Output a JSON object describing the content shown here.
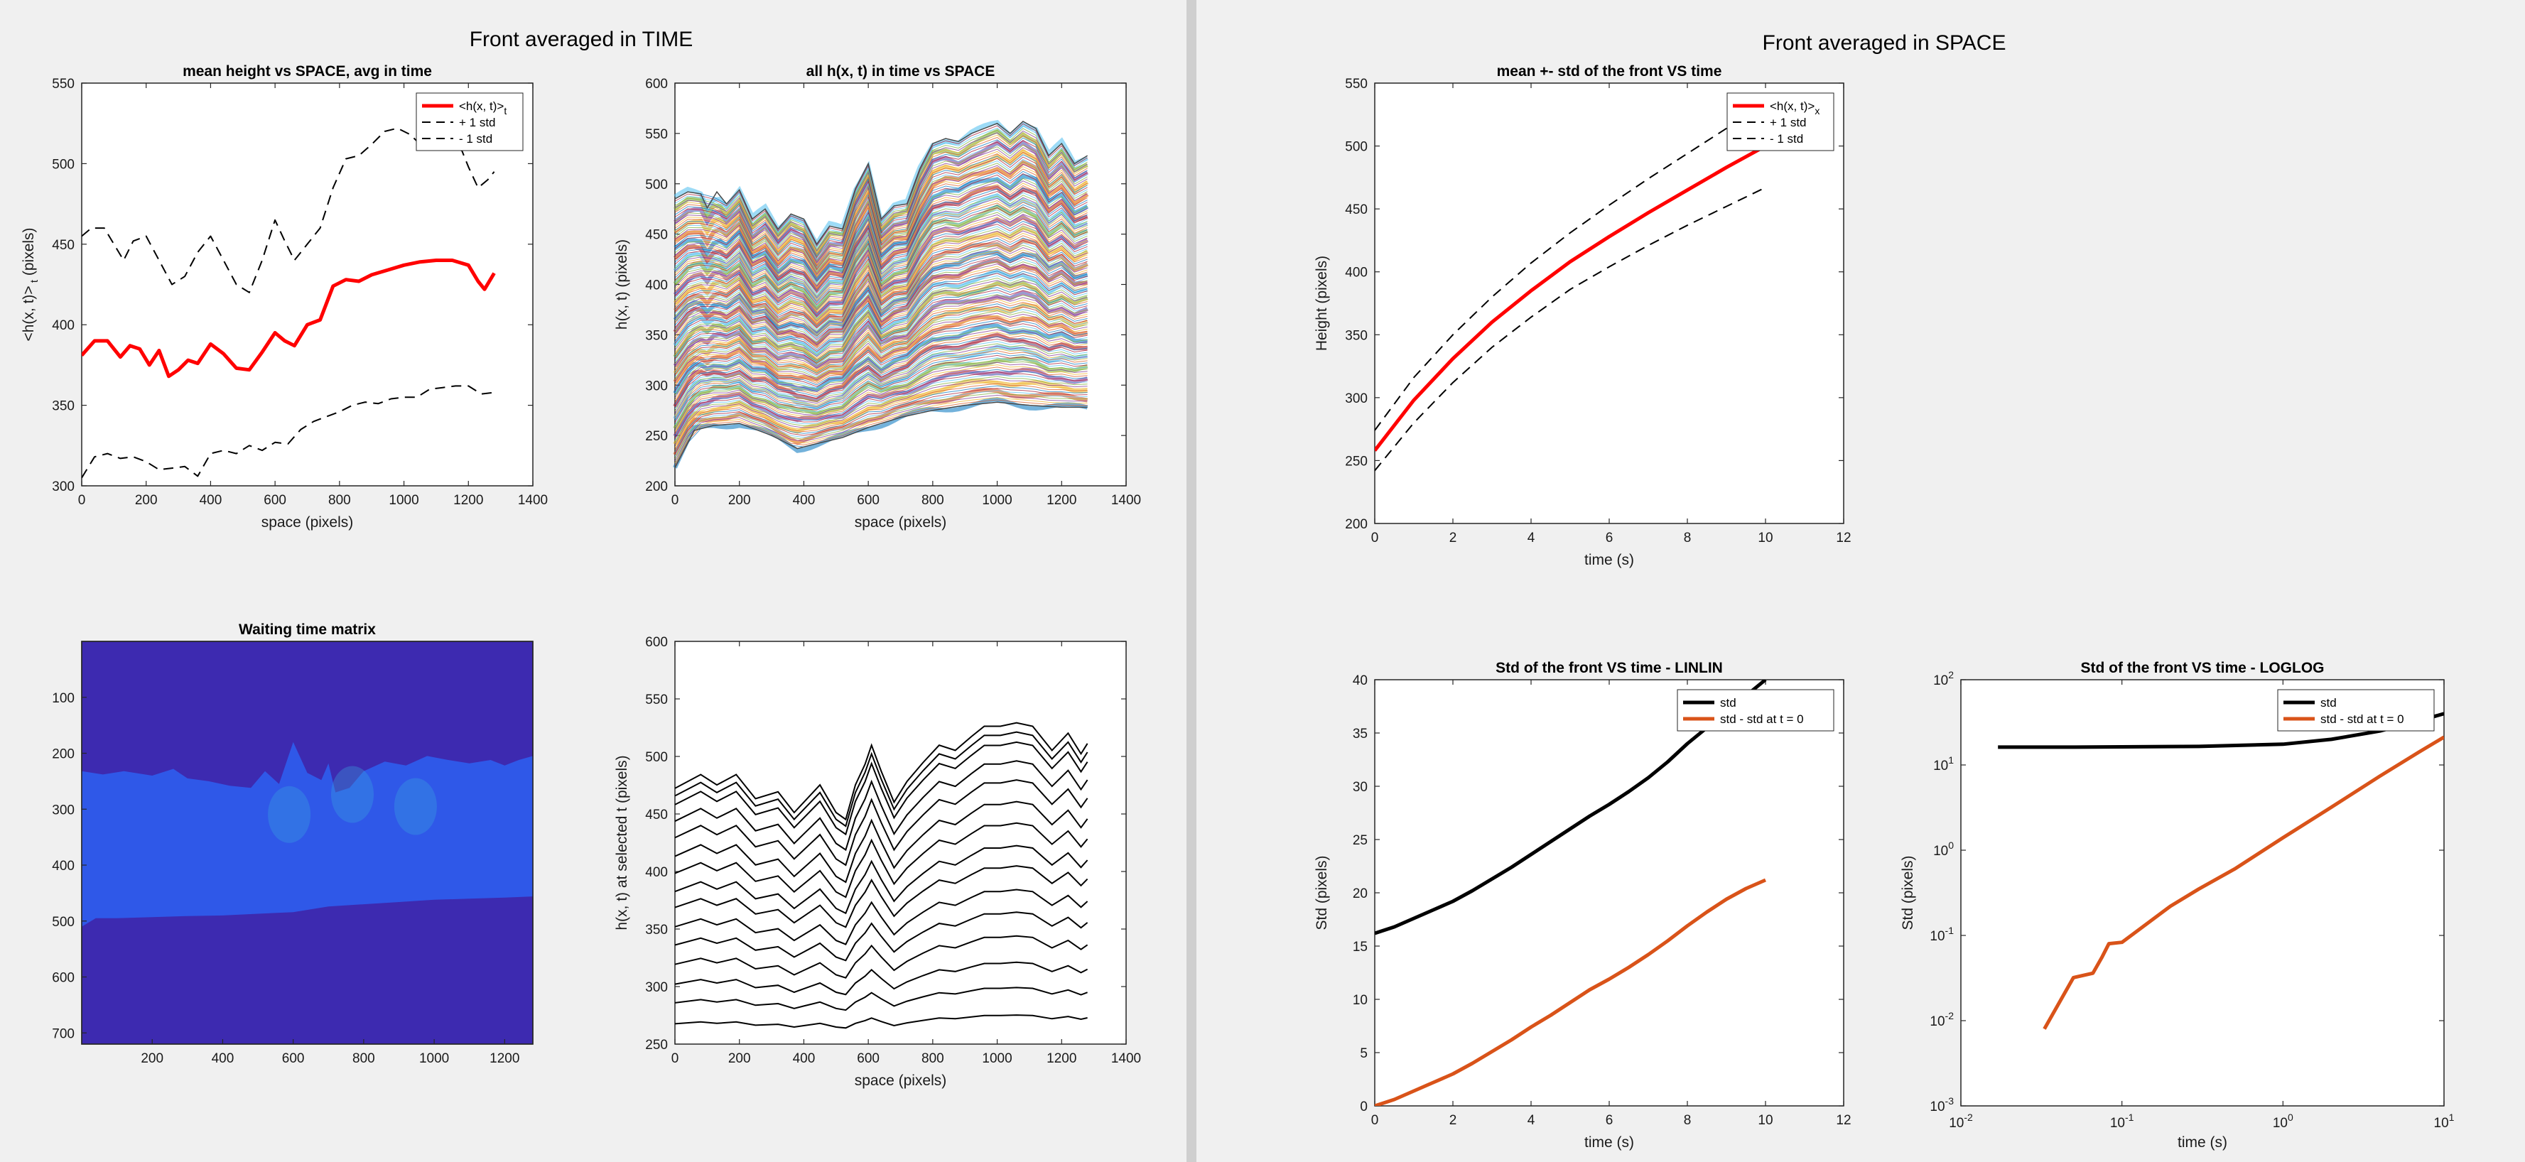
{
  "windows": {
    "left_title": "Front averaged in TIME",
    "right_title": "Front averaged in SPACE"
  },
  "chart_data": [
    {
      "id": "p1",
      "type": "line",
      "title": "mean height vs SPACE, avg in time",
      "xlabel": "space (pixels)",
      "ylabel": "<h(x, t)>",
      "ylabel_sub": "t",
      "ylabel_tail": " (pixels)",
      "xlim": [
        0,
        1400
      ],
      "ylim": [
        300,
        550
      ],
      "xticks": [
        0,
        200,
        400,
        600,
        800,
        1000,
        1200,
        1400
      ],
      "yticks": [
        300,
        350,
        400,
        450,
        500,
        550
      ],
      "legend": [
        {
          "label": "<h(x, t)>",
          "sub": "t",
          "color": "#ff0000",
          "style": "solid",
          "width": 5
        },
        {
          "label": "+ 1 std",
          "color": "#000000",
          "style": "dashed",
          "width": 2
        },
        {
          "label": "- 1 std",
          "color": "#000000",
          "style": "dashed",
          "width": 2
        }
      ],
      "series": [
        {
          "name": "<h(x, t)>t",
          "color": "#ff0000",
          "width": 5,
          "dash": "",
          "x": [
            0,
            40,
            80,
            120,
            150,
            180,
            210,
            240,
            270,
            300,
            330,
            360,
            400,
            440,
            480,
            520,
            560,
            600,
            630,
            660,
            700,
            740,
            780,
            820,
            860,
            900,
            950,
            1000,
            1050,
            1100,
            1150,
            1200,
            1230,
            1250,
            1280
          ],
          "y": [
            381,
            390,
            390,
            380,
            387,
            385,
            375,
            384,
            368,
            372,
            378,
            376,
            388,
            382,
            373,
            372,
            383,
            395,
            390,
            387,
            400,
            403,
            424,
            428,
            427,
            431,
            434,
            437,
            439,
            440,
            440,
            437,
            427,
            422,
            432
          ]
        },
        {
          "name": "+ 1 std",
          "color": "#000000",
          "width": 2,
          "dash": "14,9",
          "x": [
            0,
            30,
            70,
            100,
            130,
            160,
            200,
            240,
            280,
            320,
            360,
            400,
            440,
            480,
            520,
            560,
            600,
            630,
            660,
            700,
            740,
            780,
            820,
            860,
            900,
            940,
            980,
            1020,
            1060,
            1100,
            1140,
            1180,
            1200,
            1230,
            1260,
            1280
          ],
          "y": [
            455,
            460,
            460,
            450,
            440,
            452,
            455,
            440,
            425,
            430,
            445,
            455,
            440,
            425,
            420,
            440,
            465,
            452,
            440,
            450,
            460,
            485,
            503,
            505,
            512,
            520,
            522,
            518,
            510,
            512,
            512,
            508,
            498,
            485,
            490,
            495
          ]
        },
        {
          "name": "- 1 std",
          "color": "#000000",
          "width": 2,
          "dash": "14,9",
          "x": [
            0,
            40,
            80,
            120,
            160,
            200,
            240,
            280,
            320,
            360,
            400,
            440,
            480,
            520,
            560,
            600,
            640,
            680,
            720,
            760,
            800,
            840,
            880,
            920,
            960,
            1000,
            1040,
            1080,
            1120,
            1160,
            1200,
            1240,
            1280
          ],
          "y": [
            305,
            318,
            320,
            317,
            318,
            315,
            310,
            311,
            312,
            306,
            320,
            322,
            320,
            325,
            322,
            327,
            326,
            335,
            340,
            343,
            346,
            350,
            352,
            351,
            354,
            355,
            355,
            360,
            361,
            362,
            362,
            357,
            358
          ]
        }
      ]
    },
    {
      "id": "p2",
      "type": "line",
      "title": "all h(x, t) in time vs SPACE",
      "xlabel": "space (pixels)",
      "ylabel": "h(x, t) (pixels)",
      "xlim": [
        0,
        1400
      ],
      "ylim": [
        200,
        600
      ],
      "xticks": [
        0,
        200,
        400,
        600,
        800,
        1000,
        1200,
        1400
      ],
      "yticks": [
        200,
        250,
        300,
        350,
        400,
        450,
        500,
        550,
        600
      ],
      "bottom_x": [
        0,
        60,
        120,
        200,
        300,
        380,
        440,
        520,
        600,
        700,
        800,
        900,
        1000,
        1100,
        1200,
        1280
      ],
      "bottom_y": [
        218,
        255,
        260,
        262,
        250,
        237,
        242,
        248,
        258,
        268,
        275,
        280,
        283,
        280,
        278,
        278
      ],
      "top_x": [
        0,
        40,
        80,
        100,
        130,
        160,
        200,
        240,
        280,
        320,
        360,
        400,
        440,
        480,
        520,
        560,
        600,
        640,
        680,
        720,
        760,
        800,
        840,
        880,
        920,
        960,
        1000,
        1040,
        1080,
        1120,
        1160,
        1200,
        1240,
        1280
      ],
      "top_y": [
        485,
        492,
        490,
        476,
        492,
        480,
        494,
        465,
        475,
        455,
        470,
        465,
        440,
        458,
        455,
        495,
        520,
        465,
        478,
        480,
        515,
        540,
        545,
        542,
        550,
        555,
        560,
        550,
        562,
        555,
        528,
        540,
        520,
        528
      ]
    },
    {
      "id": "p3",
      "type": "heatmap",
      "title": "Waiting time matrix",
      "xlim": [
        1,
        1280
      ],
      "ylim": [
        1,
        720
      ],
      "xticks": [
        200,
        400,
        600,
        800,
        1000,
        1200
      ],
      "yticks": [
        100,
        200,
        300,
        400,
        500,
        600,
        700
      ],
      "base_color": "#3d2ab0",
      "front_color": "#2f58e8",
      "front_top_x": [
        0,
        60,
        120,
        200,
        260,
        300,
        360,
        420,
        480,
        520,
        560,
        600,
        640,
        680,
        700,
        720,
        760,
        800,
        860,
        920,
        980,
        1040,
        1100,
        1160,
        1200,
        1240,
        1280
      ],
      "front_top_y": [
        232,
        238,
        232,
        240,
        228,
        245,
        250,
        258,
        262,
        232,
        255,
        180,
        235,
        248,
        218,
        270,
        262,
        232,
        215,
        222,
        205,
        212,
        218,
        212,
        222,
        212,
        205
      ],
      "front_bottom_x": [
        0,
        40,
        100,
        200,
        300,
        400,
        500,
        600,
        700,
        800,
        900,
        1000,
        1100,
        1200,
        1280
      ],
      "front_bottom_y": [
        510,
        495,
        495,
        493,
        491,
        490,
        487,
        484,
        474,
        470,
        466,
        462,
        460,
        458,
        456
      ]
    },
    {
      "id": "p4",
      "type": "line",
      "xlabel": "space (pixels)",
      "ylabel": "h(x, t) at selected t (pixels)",
      "xlim": [
        0,
        1400
      ],
      "ylim": [
        250,
        600
      ],
      "xticks": [
        0,
        200,
        400,
        600,
        800,
        1000,
        1200,
        1400
      ],
      "yticks": [
        250,
        300,
        350,
        400,
        450,
        500,
        550,
        600
      ],
      "base_x": [
        0,
        80,
        130,
        190,
        250,
        320,
        370,
        400,
        450,
        500,
        530,
        560,
        590,
        610,
        640,
        680,
        720,
        770,
        820,
        870,
        920,
        960,
        1010,
        1060,
        1110,
        1170,
        1220,
        1260,
        1280
      ],
      "base_profile": [
        0,
        8,
        2,
        8,
        -6,
        -2,
        -14,
        -8,
        2,
        -14,
        -18,
        2,
        14,
        25,
        10,
        -8,
        4,
        15,
        25,
        22,
        30,
        36,
        36,
        38,
        36,
        22,
        32,
        20,
        26
      ],
      "offsets": [
        270,
        290,
        308,
        327,
        345,
        362,
        380,
        395,
        412,
        428,
        445,
        460,
        475,
        483,
        490
      ],
      "scales": [
        0.2,
        0.35,
        0.5,
        0.65,
        0.75,
        0.85,
        0.95,
        1.05,
        1.15,
        1.25,
        1.32,
        1.38,
        1.43,
        1.46,
        1.5
      ]
    },
    {
      "id": "p5",
      "type": "line",
      "title": "mean +- std of the front VS time",
      "xlabel": "time (s)",
      "ylabel": "Height (pixels)",
      "xlim": [
        0,
        12
      ],
      "ylim": [
        200,
        550
      ],
      "xticks": [
        0,
        2,
        4,
        6,
        8,
        10,
        12
      ],
      "yticks": [
        200,
        250,
        300,
        350,
        400,
        450,
        500,
        550
      ],
      "legend": [
        {
          "label": "<h(x, t)>",
          "sub": "x",
          "color": "#ff0000",
          "style": "solid",
          "width": 5
        },
        {
          "label": "+ 1 std",
          "color": "#000000",
          "style": "dashed",
          "width": 2
        },
        {
          "label": "- 1 std",
          "color": "#000000",
          "style": "dashed",
          "width": 2
        }
      ],
      "series": [
        {
          "name": "<h(x, t)>x",
          "color": "#ff0000",
          "width": 5,
          "dash": "",
          "x": [
            0,
            1,
            2,
            3,
            4,
            5,
            6,
            7,
            8,
            9,
            10
          ],
          "y": [
            258,
            298,
            331,
            360,
            385,
            408,
            428,
            447,
            465,
            483,
            500
          ]
        },
        {
          "name": "+ 1 std",
          "color": "#000000",
          "width": 2,
          "dash": "14,9",
          "x": [
            0,
            1,
            2,
            3,
            4,
            5,
            6,
            7,
            8,
            9,
            10
          ],
          "y": [
            274,
            316,
            350,
            380,
            407,
            431,
            453,
            474,
            494,
            514,
            533
          ]
        },
        {
          "name": "- 1 std",
          "color": "#000000",
          "width": 2,
          "dash": "14,9",
          "x": [
            0,
            1,
            2,
            3,
            4,
            5,
            6,
            7,
            8,
            9,
            10
          ],
          "y": [
            242,
            280,
            312,
            340,
            364,
            386,
            404,
            421,
            437,
            452,
            467
          ]
        }
      ]
    },
    {
      "id": "p6",
      "type": "line",
      "title": "Std of the front VS time - LINLIN",
      "xlabel": "time (s)",
      "ylabel": "Std (pixels)",
      "xlim": [
        0,
        12
      ],
      "ylim": [
        0,
        40
      ],
      "xticks": [
        0,
        2,
        4,
        6,
        8,
        10,
        12
      ],
      "yticks": [
        0,
        5,
        10,
        15,
        20,
        25,
        30,
        35,
        40
      ],
      "legend": [
        {
          "label": "std",
          "color": "#000000",
          "style": "solid",
          "width": 5
        },
        {
          "label": "std - std at t = 0",
          "color": "#d95319",
          "style": "solid",
          "width": 5
        }
      ],
      "series": [
        {
          "name": "std",
          "color": "#000000",
          "width": 5,
          "dash": "",
          "x": [
            0,
            0.5,
            1,
            1.5,
            2,
            2.5,
            3,
            3.5,
            4,
            4.5,
            5,
            5.5,
            6,
            6.5,
            7,
            7.5,
            8,
            8.5,
            9,
            9.5,
            10
          ],
          "y": [
            16.2,
            16.8,
            17.6,
            18.4,
            19.2,
            20.2,
            21.3,
            22.4,
            23.6,
            24.8,
            26.0,
            27.2,
            28.3,
            29.5,
            30.8,
            32.3,
            34.0,
            35.5,
            37.0,
            38.5,
            40.0
          ]
        },
        {
          "name": "std - std at t = 0",
          "color": "#d95319",
          "width": 5,
          "dash": "",
          "x": [
            0,
            0.5,
            1,
            1.5,
            2,
            2.5,
            3,
            3.5,
            4,
            4.5,
            5,
            5.5,
            6,
            6.5,
            7,
            7.5,
            8,
            8.5,
            9,
            9.5,
            10
          ],
          "y": [
            0,
            0.6,
            1.4,
            2.2,
            3.0,
            4.0,
            5.1,
            6.2,
            7.4,
            8.5,
            9.7,
            10.9,
            11.9,
            13.0,
            14.2,
            15.5,
            16.9,
            18.2,
            19.4,
            20.4,
            21.2
          ]
        }
      ]
    },
    {
      "id": "p7",
      "type": "line",
      "title": "Std of the front VS time - LOGLOG",
      "xlabel": "time (s)",
      "ylabel": "Std (pixels)",
      "xscale": "log",
      "yscale": "log",
      "xlim": [
        0.01,
        10
      ],
      "ylim": [
        0.001,
        100
      ],
      "xticks": [
        0.01,
        0.1,
        1,
        10
      ],
      "xtick_labels": [
        [
          "10",
          "-2"
        ],
        [
          "10",
          "-1"
        ],
        [
          "10",
          "0"
        ],
        [
          "10",
          "1"
        ]
      ],
      "yticks": [
        0.001,
        0.01,
        0.1,
        1,
        10,
        100
      ],
      "ytick_labels": [
        [
          "10",
          "-3"
        ],
        [
          "10",
          "-2"
        ],
        [
          "10",
          "-1"
        ],
        [
          "10",
          "0"
        ],
        [
          "10",
          "1"
        ],
        [
          "10",
          "2"
        ]
      ],
      "legend": [
        {
          "label": "std",
          "color": "#000000",
          "style": "solid",
          "width": 5
        },
        {
          "label": "std - std at t = 0",
          "color": "#d95319",
          "style": "solid",
          "width": 5
        }
      ],
      "series": [
        {
          "name": "std",
          "color": "#000000",
          "width": 5,
          "dash": "",
          "x": [
            0.017,
            0.05,
            0.1,
            0.3,
            1,
            2,
            4,
            7,
            10
          ],
          "y": [
            16.2,
            16.2,
            16.3,
            16.5,
            17.5,
            20,
            25,
            33,
            40
          ]
        },
        {
          "name": "std - std at t = 0",
          "color": "#d95319",
          "width": 5,
          "dash": "",
          "x": [
            0.033,
            0.05,
            0.066,
            0.075,
            0.083,
            0.1,
            0.13,
            0.2,
            0.3,
            0.5,
            1,
            2,
            4,
            7,
            10
          ],
          "y": [
            0.008,
            0.032,
            0.036,
            0.055,
            0.08,
            0.083,
            0.12,
            0.22,
            0.35,
            0.6,
            1.4,
            3.2,
            7.4,
            14.2,
            21.2
          ]
        }
      ]
    }
  ]
}
